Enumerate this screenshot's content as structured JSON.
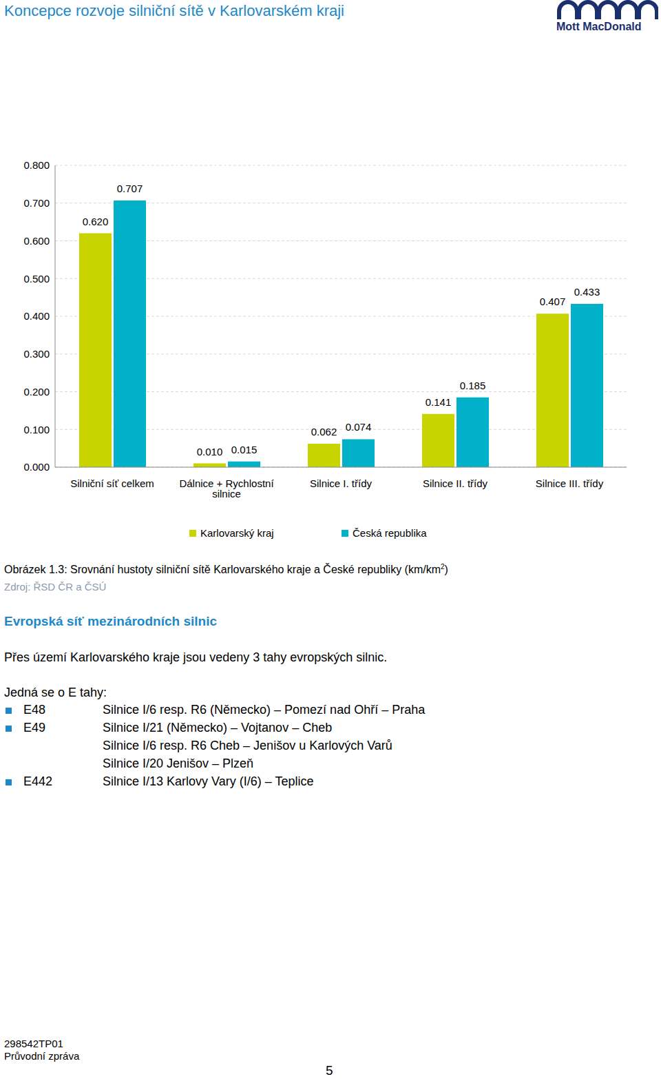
{
  "header": {
    "title": "Koncepce rozvoje silniční sítě v Karlovarském kraji",
    "logo": "Mott MacDonald"
  },
  "chart_data": {
    "type": "bar",
    "categories": [
      "Silniční síť celkem",
      "Dálnice + Rychlostní silnice",
      "Silnice I. třídy",
      "Silnice II. třídy",
      "Silnice III. třídy"
    ],
    "series": [
      {
        "name": "Karlovarský kraj",
        "color": "#c8d400",
        "values": [
          0.62,
          0.01,
          0.062,
          0.141,
          0.407
        ],
        "value_labels": [
          "0.620",
          "0.010",
          "0.062",
          "0.141",
          "0.407"
        ]
      },
      {
        "name": "Česká republika",
        "color": "#00b1c9",
        "values": [
          0.707,
          0.015,
          0.074,
          0.185,
          0.433
        ],
        "value_labels": [
          "0.707",
          "0.015",
          "0.074",
          "0.185",
          "0.433"
        ]
      }
    ],
    "ylim": [
      0,
      0.8
    ],
    "yticks": [
      {
        "value": 0,
        "label": "0.000"
      },
      {
        "value": 0.1,
        "label": "0.100"
      },
      {
        "value": 0.2,
        "label": "0.200"
      },
      {
        "value": 0.3,
        "label": "0.300"
      },
      {
        "value": 0.4,
        "label": "0.400"
      },
      {
        "value": 0.5,
        "label": "0.500"
      },
      {
        "value": 0.6,
        "label": "0.600"
      },
      {
        "value": 0.7,
        "label": "0.700"
      },
      {
        "value": 0.8,
        "label": "0.800"
      }
    ],
    "grid": true,
    "data_labels": true,
    "legend": "bottom"
  },
  "caption": {
    "text": "Obrázek 1.3: Srovnání hustoty silniční sítě Karlovarského kraje a České republiky (km/km",
    "sup": "2",
    "end": ")"
  },
  "source": "Zdroj: ŘSD ČR a ČSÚ",
  "section": {
    "heading": "Evropská síť mezinárodních silnic",
    "paragraph": "Přes území Karlovarského kraje jsou vedeny 3 tahy evropských silnic.",
    "list_intro": "Jedná se o E tahy:",
    "list": [
      {
        "code": "E48",
        "routes": [
          "Silnice I/6 resp. R6 (Německo) – Pomezí nad Ohří – Praha"
        ]
      },
      {
        "code": "E49",
        "routes": [
          "Silnice I/21 (Německo) – Vojtanov – Cheb",
          "Silnice I/6 resp. R6 Cheb – Jenišov u Karlových Varů",
          "Silnice I/20 Jenišov – Plzeň"
        ]
      },
      {
        "code": "E442",
        "routes": [
          "Silnice I/13 Karlovy Vary (I/6) – Teplice"
        ]
      }
    ]
  },
  "footer": {
    "lines": [
      "298542TP01",
      "Průvodní zpráva"
    ],
    "page": "5"
  }
}
